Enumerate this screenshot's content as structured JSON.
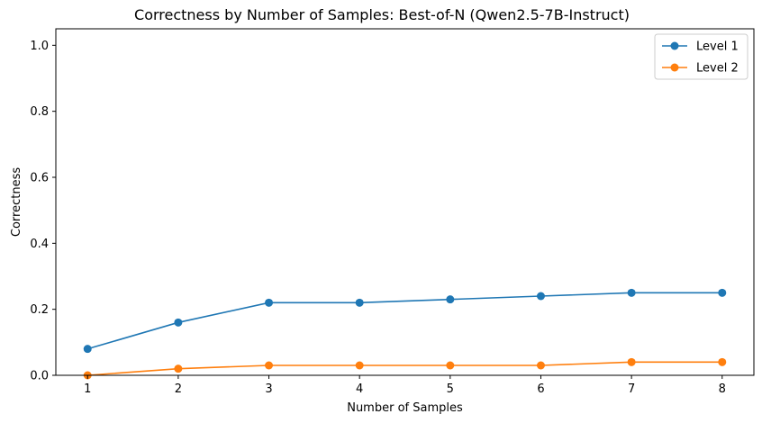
{
  "chart_data": {
    "type": "line",
    "title": "Correctness by Number of Samples: Best-of-N (Qwen2.5-7B-Instruct)",
    "xlabel": "Number of Samples",
    "ylabel": "Correctness",
    "x": [
      1,
      2,
      3,
      4,
      5,
      6,
      7,
      8
    ],
    "xticks": [
      "1",
      "2",
      "3",
      "4",
      "5",
      "6",
      "7",
      "8"
    ],
    "yticks": [
      "0.0",
      "0.2",
      "0.4",
      "0.6",
      "0.8",
      "1.0"
    ],
    "xlim": [
      0.65,
      8.35
    ],
    "ylim": [
      0,
      1.05
    ],
    "grid": false,
    "legend_position": "top-right",
    "series": [
      {
        "name": "Level 1",
        "color": "#1f77b4",
        "values": [
          0.08,
          0.16,
          0.22,
          0.22,
          0.23,
          0.24,
          0.25,
          0.25
        ]
      },
      {
        "name": "Level 2",
        "color": "#ff7f0e",
        "values": [
          0.0,
          0.02,
          0.03,
          0.03,
          0.03,
          0.03,
          0.04,
          0.04
        ]
      }
    ]
  }
}
